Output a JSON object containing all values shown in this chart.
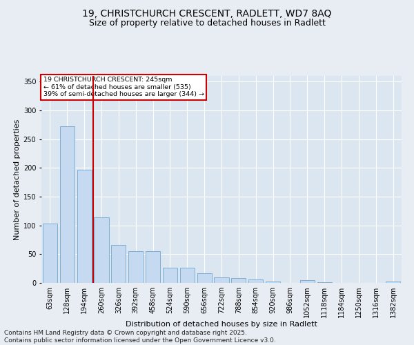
{
  "title1": "19, CHRISTCHURCH CRESCENT, RADLETT, WD7 8AQ",
  "title2": "Size of property relative to detached houses in Radlett",
  "xlabel": "Distribution of detached houses by size in Radlett",
  "ylabel": "Number of detached properties",
  "categories": [
    "63sqm",
    "128sqm",
    "194sqm",
    "260sqm",
    "326sqm",
    "392sqm",
    "458sqm",
    "524sqm",
    "590sqm",
    "656sqm",
    "722sqm",
    "788sqm",
    "854sqm",
    "920sqm",
    "986sqm",
    "1052sqm",
    "1118sqm",
    "1184sqm",
    "1250sqm",
    "1316sqm",
    "1382sqm"
  ],
  "values": [
    103,
    272,
    197,
    114,
    66,
    55,
    55,
    27,
    27,
    17,
    10,
    9,
    6,
    3,
    0,
    5,
    1,
    0,
    0,
    0,
    2
  ],
  "bar_color": "#c5d9f0",
  "bar_edge_color": "#7bafd4",
  "vline_color": "#cc0000",
  "annotation_title": "19 CHRISTCHURCH CRESCENT: 245sqm",
  "annotation_line1": "← 61% of detached houses are smaller (535)",
  "annotation_line2": "39% of semi-detached houses are larger (344) →",
  "annotation_box_color": "#ffffff",
  "annotation_box_edge": "#cc0000",
  "ylim": [
    0,
    360
  ],
  "yticks": [
    0,
    50,
    100,
    150,
    200,
    250,
    300,
    350
  ],
  "bg_color": "#e8edf3",
  "plot_bg": "#dce6f0",
  "footer": "Contains HM Land Registry data © Crown copyright and database right 2025.\nContains public sector information licensed under the Open Government Licence v3.0.",
  "footer_fontsize": 6.5,
  "title1_fontsize": 10,
  "title2_fontsize": 9,
  "axis_label_fontsize": 8,
  "tick_fontsize": 7
}
